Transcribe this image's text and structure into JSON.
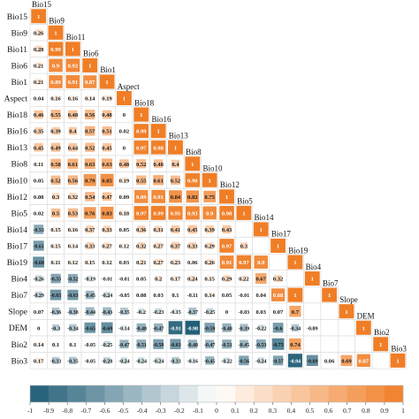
{
  "chart_data": {
    "type": "heatmap",
    "title": "",
    "variables": [
      "Bio15",
      "Bio9",
      "Bio11",
      "Bio6",
      "Bio1",
      "Aspect",
      "Bio18",
      "Bio16",
      "Bio13",
      "Bio8",
      "Bio10",
      "Bio12",
      "Bio5",
      "Bio14",
      "Bio17",
      "Bio19",
      "Bio4",
      "Bio7",
      "Slope",
      "DEM",
      "Bio2",
      "Bio3"
    ],
    "diagonal_value": "1",
    "rows": [
      [],
      [
        "0.26"
      ],
      [
        "0.28",
        "0.99"
      ],
      [
        "0.21",
        "0.9",
        "0.92"
      ],
      [
        "0.21",
        "0.89",
        "0.91",
        "0.87"
      ],
      [
        "0.04",
        "0.16",
        "0.16",
        "0.14",
        "0.19"
      ],
      [
        "0.46",
        "0.55",
        "0.48",
        "0.56",
        "0.48",
        "0"
      ],
      [
        "0.35",
        "0.39",
        "0.4",
        "0.57",
        "0.51",
        "0.02",
        "0.99"
      ],
      [
        "0.45",
        "0.49",
        "0.44",
        "0.52",
        "0.45",
        "0",
        "0.97",
        "0.98"
      ],
      [
        "0.11",
        "0.58",
        "0.61",
        "0.63",
        "0.63",
        "0.48",
        "0.52",
        "0.48",
        "0.4"
      ],
      [
        "0.05",
        "0.52",
        "0.56",
        "0.79",
        "0.85",
        "0.19",
        "0.55",
        "0.61",
        "0.52",
        "0.98"
      ],
      [
        "0.08",
        "0.3",
        "0.32",
        "0.54",
        "0.47",
        "0.09",
        "0.89",
        "0.91",
        "0.84",
        "0.82",
        "0.75"
      ],
      [
        "0.02",
        "0.5",
        "0.53",
        "0.76",
        "0.83",
        "0.18",
        "0.97",
        "0.99",
        "0.95",
        "0.93",
        "0.9",
        "0.98"
      ],
      [
        "-0.53",
        "0.15",
        "0.16",
        "0.37",
        "0.33",
        "0.05",
        "0.36",
        "0.31",
        "0.41",
        "0.45",
        "0.39",
        "0.43"
      ],
      [
        "-0.61",
        "0.15",
        "0.14",
        "0.33",
        "0.27",
        "0.12",
        "0.32",
        "0.27",
        "0.37",
        "0.33",
        "0.29",
        "0.97",
        "0.3"
      ],
      [
        "-0.68",
        "0.11",
        "0.12",
        "0.15",
        "0.12",
        "0.03",
        "0.21",
        "0.27",
        "0.23",
        "0.06",
        "0.26",
        "0.91",
        "0.97",
        "0.9"
      ],
      [
        "-0.26",
        "-0.55",
        "-0.52",
        "-0.19",
        "-0.01",
        "-0.01",
        "0.05",
        "0.2",
        "0.17",
        "0.24",
        "0.15",
        "0.29",
        "0.22",
        "0.67",
        "0.32"
      ],
      [
        "-0.29",
        "-0.65",
        "-0.63",
        "-0.45",
        "-0.24",
        "-0.05",
        "0.08",
        "0.03",
        "0.1",
        "-0.11",
        "0.14",
        "0.05",
        "-0.01",
        "0.04",
        "0.88",
        "1"
      ],
      [
        "0.07",
        "-0.36",
        "-0.38",
        "-0.44",
        "-0.43",
        "-0.35",
        "-0.2",
        "-0.23",
        "-0.15",
        "-0.37",
        "-0.25",
        "0",
        "-0.03",
        "0.03",
        "0.07",
        "0.7"
      ],
      [
        "0",
        "-0.3",
        "-0.34",
        "-0.65",
        "-0.69",
        "-0.14",
        "-0.48",
        "-0.47",
        "-0.91",
        "-0.98",
        "-0.59",
        "-0.48",
        "-0.39",
        "-0.22",
        "-0.6",
        "-0.34",
        "-0.09"
      ],
      [
        "0.14",
        "0.1",
        "0.1",
        "-0.05",
        "-0.25",
        "-0.47",
        "-0.51",
        "-0.59",
        "-0.63",
        "-0.48",
        "-0.47",
        "-0.51",
        "-0.45",
        "-0.53",
        "-0.75",
        "0.74"
      ],
      [
        "0.17",
        "-0.33",
        "-0.35",
        "-0.05",
        "-0.28",
        "-0.24",
        "-0.24",
        "-0.24",
        "-0.33",
        "-0.16",
        "-0.45",
        "-0.22",
        "-0.56",
        "-0.24",
        "-0.57",
        "-0.94",
        "-0.69",
        "0.06",
        "0.69",
        "0.87"
      ]
    ],
    "colorbar": {
      "ticks": [
        "-1",
        "-0.9",
        "-0.8",
        "-0.7",
        "-0.6",
        "-0.5",
        "-0.4",
        "-0.3",
        "-0.2",
        "-0.1",
        "0",
        "0.1",
        "0.2",
        "0.3",
        "0.4",
        "0.5",
        "0.6",
        "0.7",
        "0.8",
        "0.9",
        "1"
      ],
      "range": [
        -1,
        1
      ]
    },
    "colors": {
      "positive": "#F07E26",
      "negative": "#1F5C75",
      "neutral": "#FFFFFF",
      "grid": "#D9D9D9"
    }
  }
}
